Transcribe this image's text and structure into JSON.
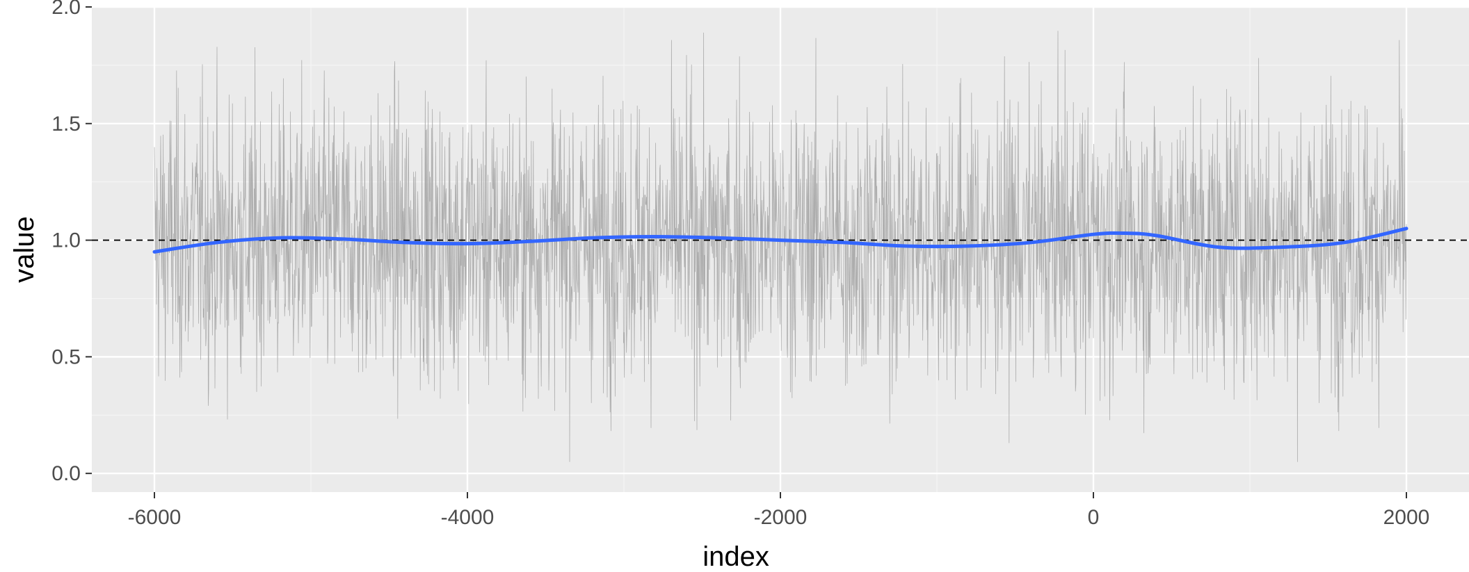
{
  "chart_data": {
    "type": "line",
    "title": "",
    "xlabel": "index",
    "ylabel": "value",
    "xlim": [
      -6400,
      2400
    ],
    "ylim": [
      -0.08,
      2.0
    ],
    "x_ticks": [
      {
        "value": -6000,
        "label": "-6000"
      },
      {
        "value": -4000,
        "label": "-4000"
      },
      {
        "value": -2000,
        "label": "-2000"
      },
      {
        "value": 0,
        "label": "0"
      },
      {
        "value": 2000,
        "label": "2000"
      }
    ],
    "y_ticks": [
      {
        "value": 0.0,
        "label": "0.0"
      },
      {
        "value": 0.5,
        "label": "0.5"
      },
      {
        "value": 1.0,
        "label": "1.0"
      },
      {
        "value": 1.5,
        "label": "1.5"
      },
      {
        "value": 2.0,
        "label": "2.0"
      }
    ],
    "grid": true,
    "reference_line": {
      "y": 1.0,
      "style": "dashed",
      "color": "#000000"
    },
    "series": [
      {
        "kind": "raw",
        "color": "#a6a6a6",
        "x_start": -6000,
        "x_end": 2000,
        "approx_mean": 1.0,
        "approx_min": 0.0,
        "approx_max": 1.9
      },
      {
        "kind": "smooth",
        "color": "#3366ff",
        "x": [
          -6000,
          -5600,
          -5200,
          -4800,
          -4400,
          -4000,
          -3600,
          -3200,
          -2800,
          -2400,
          -2000,
          -1600,
          -1200,
          -800,
          -400,
          0,
          200,
          400,
          800,
          1200,
          1600,
          2000
        ],
        "y": [
          0.95,
          0.99,
          1.01,
          1.005,
          0.99,
          0.985,
          0.995,
          1.01,
          1.015,
          1.01,
          1.0,
          0.99,
          0.975,
          0.975,
          0.99,
          1.025,
          1.03,
          1.02,
          0.97,
          0.97,
          0.99,
          1.05
        ]
      }
    ],
    "colors": {
      "panel_background": "#ebebeb",
      "grid_major": "#ffffff",
      "grid_minor": "#f5f5f5",
      "tick_text": "#4d4d4d"
    }
  }
}
